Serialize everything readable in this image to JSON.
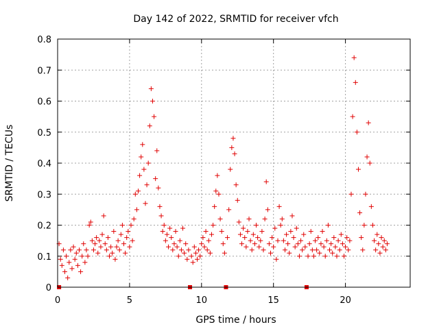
{
  "chart_data": {
    "type": "scatter",
    "title": "Day 142 of 2022, SRMTID for receiver vfch",
    "xlabel": "GPS time / hours",
    "ylabel": "SRMTID / TECUs",
    "xlim": [
      0,
      24.5
    ],
    "ylim": [
      0,
      0.8
    ],
    "x_ticks": [
      0,
      5,
      10,
      15,
      20
    ],
    "y_ticks": [
      0,
      0.1,
      0.2,
      0.3,
      0.4,
      0.5,
      0.6,
      0.7,
      0.8
    ],
    "x_tick_labels": [
      "0",
      "5",
      "10",
      "15",
      "20"
    ],
    "y_tick_labels": [
      "0",
      "0.1",
      "0.2",
      "0.3",
      "0.4",
      "0.5",
      "0.6",
      "0.7",
      "0.8"
    ],
    "grid": true,
    "marker": "+",
    "color": "#e00000",
    "x_range_data": [
      0.0,
      22.9
    ],
    "zero_markers_x": [
      0.1,
      9.2,
      11.7,
      17.3
    ],
    "series": [
      {
        "name": "SRMTID",
        "points": [
          [
            0.1,
            0.14
          ],
          [
            0.2,
            0.09
          ],
          [
            0.3,
            0.07
          ],
          [
            0.4,
            0.12
          ],
          [
            0.5,
            0.05
          ],
          [
            0.6,
            0.1
          ],
          [
            0.7,
            0.03
          ],
          [
            0.8,
            0.08
          ],
          [
            0.9,
            0.12
          ],
          [
            1.0,
            0.06
          ],
          [
            1.1,
            0.13
          ],
          [
            1.2,
            0.09
          ],
          [
            1.3,
            0.11
          ],
          [
            1.4,
            0.07
          ],
          [
            1.5,
            0.12
          ],
          [
            1.6,
            0.05
          ],
          [
            1.7,
            0.1
          ],
          [
            1.8,
            0.14
          ],
          [
            1.9,
            0.08
          ],
          [
            2.0,
            0.12
          ],
          [
            2.1,
            0.1
          ],
          [
            2.2,
            0.2
          ],
          [
            2.3,
            0.21
          ],
          [
            2.4,
            0.15
          ],
          [
            2.5,
            0.12
          ],
          [
            2.6,
            0.14
          ],
          [
            2.7,
            0.16
          ],
          [
            2.8,
            0.11
          ],
          [
            2.9,
            0.15
          ],
          [
            3.0,
            0.13
          ],
          [
            3.1,
            0.17
          ],
          [
            3.2,
            0.23
          ],
          [
            3.3,
            0.14
          ],
          [
            3.4,
            0.12
          ],
          [
            3.5,
            0.16
          ],
          [
            3.6,
            0.1
          ],
          [
            3.7,
            0.13
          ],
          [
            3.8,
            0.11
          ],
          [
            3.9,
            0.18
          ],
          [
            4.0,
            0.09
          ],
          [
            4.1,
            0.13
          ],
          [
            4.2,
            0.15
          ],
          [
            4.3,
            0.12
          ],
          [
            4.4,
            0.17
          ],
          [
            4.5,
            0.2
          ],
          [
            4.6,
            0.14
          ],
          [
            4.7,
            0.11
          ],
          [
            4.8,
            0.16
          ],
          [
            4.9,
            0.18
          ],
          [
            5.0,
            0.13
          ],
          [
            5.1,
            0.2
          ],
          [
            5.2,
            0.15
          ],
          [
            5.3,
            0.22
          ],
          [
            5.4,
            0.3
          ],
          [
            5.5,
            0.25
          ],
          [
            5.6,
            0.31
          ],
          [
            5.7,
            0.36
          ],
          [
            5.8,
            0.42
          ],
          [
            5.9,
            0.46
          ],
          [
            6.0,
            0.38
          ],
          [
            6.1,
            0.27
          ],
          [
            6.2,
            0.33
          ],
          [
            6.3,
            0.4
          ],
          [
            6.4,
            0.52
          ],
          [
            6.5,
            0.64
          ],
          [
            6.6,
            0.6
          ],
          [
            6.7,
            0.55
          ],
          [
            6.8,
            0.35
          ],
          [
            6.9,
            0.44
          ],
          [
            7.0,
            0.32
          ],
          [
            7.1,
            0.26
          ],
          [
            7.2,
            0.23
          ],
          [
            7.3,
            0.18
          ],
          [
            7.4,
            0.2
          ],
          [
            7.5,
            0.15
          ],
          [
            7.6,
            0.17
          ],
          [
            7.7,
            0.13
          ],
          [
            7.8,
            0.19
          ],
          [
            7.9,
            0.16
          ],
          [
            8.0,
            0.12
          ],
          [
            8.1,
            0.14
          ],
          [
            8.2,
            0.18
          ],
          [
            8.3,
            0.13
          ],
          [
            8.4,
            0.1
          ],
          [
            8.5,
            0.15
          ],
          [
            8.6,
            0.12
          ],
          [
            8.7,
            0.19
          ],
          [
            8.8,
            0.11
          ],
          [
            8.9,
            0.14
          ],
          [
            9.0,
            0.09
          ],
          [
            9.1,
            0.12
          ],
          [
            9.3,
            0.1
          ],
          [
            9.4,
            0.08
          ],
          [
            9.5,
            0.13
          ],
          [
            9.6,
            0.11
          ],
          [
            9.7,
            0.09
          ],
          [
            9.8,
            0.12
          ],
          [
            9.9,
            0.1
          ],
          [
            10.0,
            0.14
          ],
          [
            10.1,
            0.16
          ],
          [
            10.2,
            0.13
          ],
          [
            10.3,
            0.18
          ],
          [
            10.4,
            0.12
          ],
          [
            10.5,
            0.15
          ],
          [
            10.6,
            0.11
          ],
          [
            10.7,
            0.17
          ],
          [
            10.8,
            0.2
          ],
          [
            10.9,
            0.26
          ],
          [
            11.0,
            0.31
          ],
          [
            11.1,
            0.36
          ],
          [
            11.2,
            0.3
          ],
          [
            11.3,
            0.22
          ],
          [
            11.4,
            0.18
          ],
          [
            11.5,
            0.14
          ],
          [
            11.6,
            0.11
          ],
          [
            11.8,
            0.16
          ],
          [
            11.9,
            0.25
          ],
          [
            12.0,
            0.38
          ],
          [
            12.1,
            0.45
          ],
          [
            12.2,
            0.48
          ],
          [
            12.3,
            0.43
          ],
          [
            12.4,
            0.33
          ],
          [
            12.5,
            0.28
          ],
          [
            12.6,
            0.21
          ],
          [
            12.7,
            0.17
          ],
          [
            12.8,
            0.14
          ],
          [
            12.9,
            0.19
          ],
          [
            13.0,
            0.16
          ],
          [
            13.1,
            0.13
          ],
          [
            13.2,
            0.18
          ],
          [
            13.3,
            0.22
          ],
          [
            13.4,
            0.15
          ],
          [
            13.5,
            0.12
          ],
          [
            13.6,
            0.17
          ],
          [
            13.7,
            0.14
          ],
          [
            13.8,
            0.2
          ],
          [
            13.9,
            0.16
          ],
          [
            14.0,
            0.13
          ],
          [
            14.1,
            0.15
          ],
          [
            14.2,
            0.18
          ],
          [
            14.3,
            0.12
          ],
          [
            14.4,
            0.22
          ],
          [
            14.5,
            0.34
          ],
          [
            14.6,
            0.25
          ],
          [
            14.7,
            0.14
          ],
          [
            14.8,
            0.11
          ],
          [
            14.9,
            0.16
          ],
          [
            15.0,
            0.13
          ],
          [
            15.1,
            0.19
          ],
          [
            15.2,
            0.09
          ],
          [
            15.3,
            0.15
          ],
          [
            15.4,
            0.26
          ],
          [
            15.5,
            0.2
          ],
          [
            15.6,
            0.22
          ],
          [
            15.7,
            0.15
          ],
          [
            15.8,
            0.12
          ],
          [
            15.9,
            0.17
          ],
          [
            16.0,
            0.14
          ],
          [
            16.1,
            0.11
          ],
          [
            16.2,
            0.18
          ],
          [
            16.3,
            0.23
          ],
          [
            16.4,
            0.16
          ],
          [
            16.5,
            0.13
          ],
          [
            16.6,
            0.19
          ],
          [
            16.7,
            0.14
          ],
          [
            16.8,
            0.1
          ],
          [
            16.9,
            0.15
          ],
          [
            17.0,
            0.12
          ],
          [
            17.1,
            0.17
          ],
          [
            17.2,
            0.13
          ],
          [
            17.4,
            0.1
          ],
          [
            17.5,
            0.14
          ],
          [
            17.6,
            0.18
          ],
          [
            17.7,
            0.12
          ],
          [
            17.8,
            0.1
          ],
          [
            17.9,
            0.15
          ],
          [
            18.0,
            0.12
          ],
          [
            18.1,
            0.16
          ],
          [
            18.2,
            0.11
          ],
          [
            18.3,
            0.14
          ],
          [
            18.4,
            0.18
          ],
          [
            18.5,
            0.13
          ],
          [
            18.6,
            0.1
          ],
          [
            18.7,
            0.15
          ],
          [
            18.8,
            0.2
          ],
          [
            18.9,
            0.12
          ],
          [
            19.0,
            0.14
          ],
          [
            19.1,
            0.11
          ],
          [
            19.2,
            0.16
          ],
          [
            19.3,
            0.13
          ],
          [
            19.4,
            0.1
          ],
          [
            19.5,
            0.15
          ],
          [
            19.6,
            0.12
          ],
          [
            19.7,
            0.17
          ],
          [
            19.8,
            0.14
          ],
          [
            19.9,
            0.1
          ],
          [
            20.0,
            0.13
          ],
          [
            20.1,
            0.16
          ],
          [
            20.2,
            0.12
          ],
          [
            20.3,
            0.15
          ],
          [
            20.4,
            0.3
          ],
          [
            20.5,
            0.55
          ],
          [
            20.6,
            0.74
          ],
          [
            20.7,
            0.66
          ],
          [
            20.8,
            0.5
          ],
          [
            20.9,
            0.38
          ],
          [
            21.0,
            0.24
          ],
          [
            21.1,
            0.16
          ],
          [
            21.2,
            0.12
          ],
          [
            21.3,
            0.2
          ],
          [
            21.4,
            0.3
          ],
          [
            21.5,
            0.42
          ],
          [
            21.6,
            0.53
          ],
          [
            21.7,
            0.4
          ],
          [
            21.8,
            0.26
          ],
          [
            21.9,
            0.2
          ],
          [
            22.0,
            0.15
          ],
          [
            22.1,
            0.12
          ],
          [
            22.2,
            0.17
          ],
          [
            22.3,
            0.14
          ],
          [
            22.4,
            0.11
          ],
          [
            22.5,
            0.16
          ],
          [
            22.6,
            0.13
          ],
          [
            22.7,
            0.15
          ],
          [
            22.8,
            0.12
          ],
          [
            22.9,
            0.14
          ]
        ]
      }
    ]
  }
}
